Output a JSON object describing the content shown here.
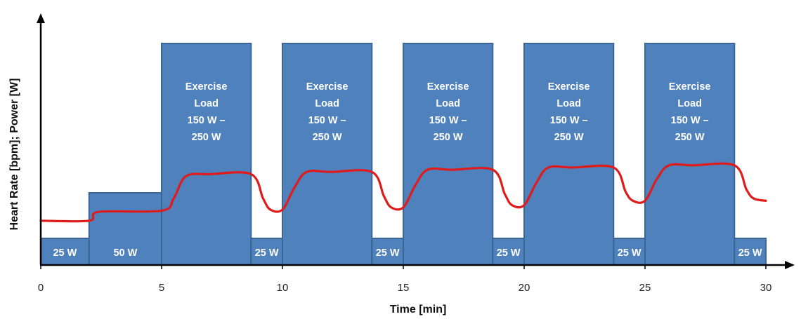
{
  "chart_data": {
    "type": "area",
    "xlabel": "Time  [min]",
    "ylabel": "Heart Rate [bpm]; Power [W]",
    "xlim": [
      0,
      30
    ],
    "x_ticks": [
      "0",
      "5",
      "10",
      "15",
      "20",
      "25",
      "30"
    ],
    "x_tick_values": [
      0,
      5,
      10,
      15,
      20,
      25,
      30
    ],
    "power_blocks": [
      {
        "start": 0,
        "end": 2,
        "level": "low",
        "label": [
          "25 W"
        ]
      },
      {
        "start": 2,
        "end": 5,
        "level": "mid",
        "label": [
          "50 W"
        ]
      },
      {
        "start": 5,
        "end": 8.7,
        "level": "high",
        "label": [
          "Exercise",
          "Load",
          "150 W –",
          "250 W"
        ]
      },
      {
        "start": 8.7,
        "end": 10,
        "level": "low",
        "label": [
          "25 W"
        ]
      },
      {
        "start": 10,
        "end": 13.7,
        "level": "high",
        "label": [
          "Exercise",
          "Load",
          "150 W –",
          "250 W"
        ]
      },
      {
        "start": 13.7,
        "end": 15,
        "level": "low",
        "label": [
          "25 W"
        ]
      },
      {
        "start": 15,
        "end": 18.7,
        "level": "high",
        "label": [
          "Exercise",
          "Load",
          "150 W –",
          "250 W"
        ]
      },
      {
        "start": 18.7,
        "end": 20,
        "level": "low",
        "label": [
          "25 W"
        ]
      },
      {
        "start": 20,
        "end": 23.7,
        "level": "high",
        "label": [
          "Exercise",
          "Load",
          "150 W –",
          "250 W"
        ]
      },
      {
        "start": 23.7,
        "end": 25,
        "level": "low",
        "label": [
          "25 W"
        ]
      },
      {
        "start": 25,
        "end": 28.7,
        "level": "high",
        "label": [
          "Exercise",
          "Load",
          "150 W –",
          "250 W"
        ]
      },
      {
        "start": 28.7,
        "end": 30,
        "level": "low",
        "label": [
          "25 W"
        ]
      }
    ],
    "heart_rate_curve": [
      [
        0,
        0.2
      ],
      [
        2,
        0.2
      ],
      [
        2.4,
        0.24
      ],
      [
        5,
        0.245
      ],
      [
        5.5,
        0.3
      ],
      [
        6,
        0.4
      ],
      [
        7,
        0.41
      ],
      [
        8.7,
        0.41
      ],
      [
        9.2,
        0.3
      ],
      [
        9.5,
        0.25
      ],
      [
        10,
        0.25
      ],
      [
        10.5,
        0.35
      ],
      [
        11,
        0.42
      ],
      [
        12,
        0.42
      ],
      [
        13.7,
        0.42
      ],
      [
        14.2,
        0.31
      ],
      [
        14.5,
        0.26
      ],
      [
        15,
        0.26
      ],
      [
        15.5,
        0.36
      ],
      [
        16,
        0.43
      ],
      [
        17,
        0.43
      ],
      [
        18.7,
        0.43
      ],
      [
        19.2,
        0.32
      ],
      [
        19.5,
        0.27
      ],
      [
        20,
        0.27
      ],
      [
        20.5,
        0.37
      ],
      [
        21,
        0.44
      ],
      [
        22,
        0.44
      ],
      [
        23.7,
        0.44
      ],
      [
        24.2,
        0.33
      ],
      [
        24.5,
        0.29
      ],
      [
        25,
        0.29
      ],
      [
        25.5,
        0.39
      ],
      [
        26,
        0.45
      ],
      [
        27,
        0.45
      ],
      [
        28.7,
        0.45
      ],
      [
        29.2,
        0.34
      ],
      [
        29.5,
        0.3
      ],
      [
        30,
        0.29
      ]
    ],
    "colors": {
      "block": "#4f81bd",
      "block_edge": "#3b6593",
      "heart_rate": "#e01b1b"
    }
  }
}
